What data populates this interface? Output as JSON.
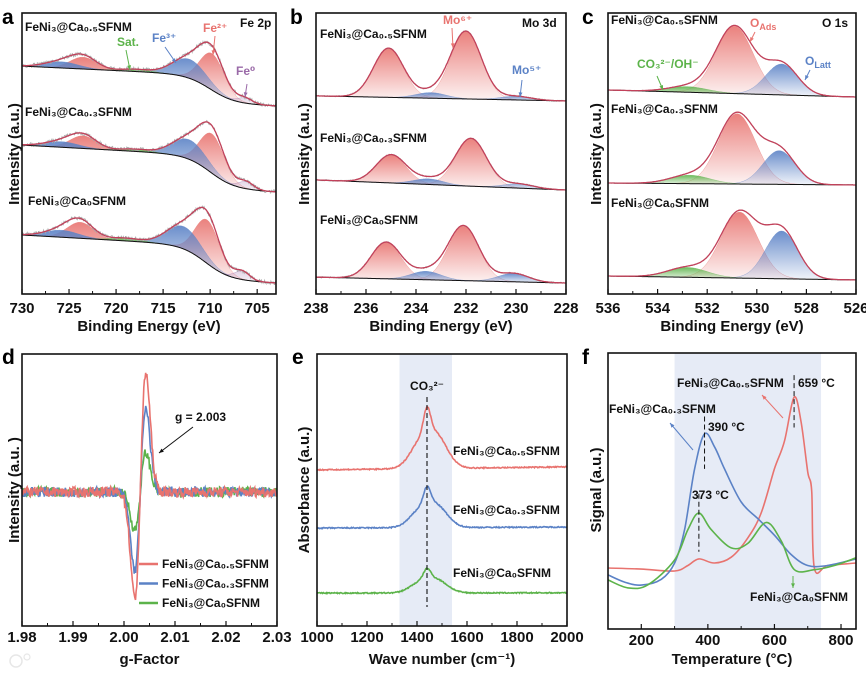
{
  "watermark": "大数跨境",
  "colors": {
    "red": "#e8736f",
    "blue": "#5b82c6",
    "green": "#5cb34a",
    "purple": "#9a6aa8",
    "envelope": "#c2415a",
    "raw": "#a8a8a8",
    "band": "#e6ebf6"
  },
  "chart_data": [
    {
      "panel": "a",
      "type": "line",
      "title": "Fe 2p",
      "xlabel": "Binding Energy (eV)",
      "ylabel": "Intensity (a.u.)",
      "xlim": [
        730,
        703
      ],
      "ylim": [
        0,
        10
      ],
      "xticks": [
        730,
        725,
        720,
        715,
        710,
        705
      ],
      "annotations": [
        {
          "text": "Sat.",
          "color": "green"
        },
        {
          "text": "Fe³⁺",
          "color": "blue"
        },
        {
          "text": "Fe²⁺",
          "color": "red"
        },
        {
          "text": "Fe⁰",
          "color": "purple"
        }
      ],
      "series": [
        {
          "label": "FeNi₃@Ca₀.₅SFNM",
          "baseline": {
            "left": 8.11,
            "right": 6.69,
            "step": 710
          },
          "components": [
            {
              "name": "Fe²⁺",
              "center": 709.8,
              "height": 1.3,
              "sigma": 1.3,
              "color": "red"
            },
            {
              "name": "Fe³⁺",
              "center": 712.2,
              "height": 0.68,
              "sigma": 1.8,
              "color": "blue"
            },
            {
              "name": "Fe²⁺",
              "center": 723.5,
              "height": 0.42,
              "sigma": 1.4,
              "color": "red"
            },
            {
              "name": "Fe³⁺",
              "center": 725.8,
              "height": 0.22,
              "sigma": 1.8,
              "color": "blue"
            },
            {
              "name": "Sat.",
              "center": 718,
              "height": 0.08,
              "sigma": 1.5,
              "color": "green"
            },
            {
              "name": "Fe⁰",
              "center": 706.3,
              "height": 0.18,
              "sigma": 0.8,
              "color": "purple"
            }
          ]
        },
        {
          "label": "FeNi₃@Ca₀.₃SFNM",
          "baseline": {
            "left": 5.3,
            "right": 3.63,
            "step": 710
          },
          "components": [
            {
              "name": "Fe²⁺",
              "center": 709.8,
              "height": 1.4,
              "sigma": 1.3,
              "color": "red"
            },
            {
              "name": "Fe³⁺",
              "center": 712.2,
              "height": 0.7,
              "sigma": 1.8,
              "color": "blue"
            },
            {
              "name": "Fe²⁺",
              "center": 723.5,
              "height": 0.45,
              "sigma": 1.4,
              "color": "red"
            },
            {
              "name": "Fe³⁺",
              "center": 725.8,
              "height": 0.2,
              "sigma": 1.8,
              "color": "blue"
            },
            {
              "name": "Sat.",
              "center": 718,
              "height": 0.08,
              "sigma": 1.5,
              "color": "green"
            },
            {
              "name": "Fe⁰",
              "center": 706.2,
              "height": 0.25,
              "sigma": 0.8,
              "color": "purple"
            }
          ]
        },
        {
          "label": "FeNi₃@Ca₀SFNM",
          "baseline": {
            "left": 2.1,
            "right": 0.39,
            "step": 710.5
          },
          "components": [
            {
              "name": "Fe²⁺",
              "center": 710.3,
              "height": 1.55,
              "sigma": 1.3,
              "color": "red"
            },
            {
              "name": "Fe³⁺",
              "center": 712.8,
              "height": 0.8,
              "sigma": 1.8,
              "color": "blue"
            },
            {
              "name": "Fe²⁺",
              "center": 723.8,
              "height": 0.57,
              "sigma": 1.4,
              "color": "red"
            },
            {
              "name": "Fe³⁺",
              "center": 725.8,
              "height": 0.25,
              "sigma": 1.8,
              "color": "blue"
            },
            {
              "name": "Sat.",
              "center": 719,
              "height": 0.1,
              "sigma": 1.5,
              "color": "green"
            },
            {
              "name": "Fe⁰",
              "center": 706.6,
              "height": 0.3,
              "sigma": 0.8,
              "color": "purple"
            }
          ]
        }
      ]
    },
    {
      "panel": "b",
      "type": "line",
      "title": "Mo 3d",
      "xlabel": "Binding Energy (eV)",
      "ylabel": "Intensity (a.u.)",
      "xlim": [
        238,
        228
      ],
      "ylim": [
        0,
        10
      ],
      "xticks": [
        238,
        236,
        234,
        232,
        230,
        228
      ],
      "annotations": [
        {
          "text": "Mo⁶⁺",
          "color": "red"
        },
        {
          "text": "Mo⁵⁺",
          "color": "blue"
        }
      ],
      "series": [
        {
          "label": "FeNi₃@Ca₀.₅SFNM",
          "baseline": {
            "left": 7.05,
            "right": 6.87
          },
          "components": [
            {
              "name": "Mo⁶⁺",
              "center": 232.0,
              "height": 2.4,
              "sigma": 0.62,
              "color": "red"
            },
            {
              "name": "Mo⁶⁺",
              "center": 235.1,
              "height": 1.75,
              "sigma": 0.6,
              "color": "red"
            },
            {
              "name": "Mo⁵⁺",
              "center": 233.4,
              "height": 0.2,
              "sigma": 0.6,
              "color": "blue"
            },
            {
              "name": "Mo⁵⁺",
              "center": 230.0,
              "height": 0.13,
              "sigma": 0.6,
              "color": "blue"
            }
          ]
        },
        {
          "label": "FeNi₃@Ca₀.₃SFNM",
          "baseline": {
            "left": 4.06,
            "right": 3.7
          },
          "components": [
            {
              "name": "Mo⁶⁺",
              "center": 231.8,
              "height": 1.7,
              "sigma": 0.62,
              "color": "red"
            },
            {
              "name": "Mo⁶⁺",
              "center": 235.0,
              "height": 1.0,
              "sigma": 0.6,
              "color": "red"
            },
            {
              "name": "Mo⁵⁺",
              "center": 233.5,
              "height": 0.2,
              "sigma": 0.6,
              "color": "blue"
            },
            {
              "name": "Mo⁵⁺",
              "center": 229.9,
              "height": 0.15,
              "sigma": 0.6,
              "color": "blue"
            }
          ]
        },
        {
          "label": "FeNi₃@Ca₀SFNM",
          "baseline": {
            "left": 0.6,
            "right": 0.39
          },
          "components": [
            {
              "name": "Mo⁶⁺",
              "center": 232.1,
              "height": 1.95,
              "sigma": 0.62,
              "color": "red"
            },
            {
              "name": "Mo⁶⁺",
              "center": 235.2,
              "height": 1.3,
              "sigma": 0.6,
              "color": "red"
            },
            {
              "name": "Mo⁵⁺",
              "center": 233.6,
              "height": 0.3,
              "sigma": 0.6,
              "color": "blue"
            },
            {
              "name": "Mo⁵⁺",
              "center": 230.1,
              "height": 0.3,
              "sigma": 0.6,
              "color": "blue"
            }
          ]
        }
      ]
    },
    {
      "panel": "c",
      "type": "line",
      "title": "O 1s",
      "xlabel": "Binding Energy (eV)",
      "ylabel": "Intensity (a.u.)",
      "xlim": [
        536,
        526
      ],
      "ylim": [
        0,
        10
      ],
      "xticks": [
        536,
        534,
        532,
        530,
        528,
        526
      ],
      "annotations": [
        {
          "text": "O",
          "sub": "Ads",
          "color": "red"
        },
        {
          "text": "CO₃²⁻/OH⁻",
          "color": "green"
        },
        {
          "text": "O",
          "sub": "Latt",
          "color": "blue"
        }
      ],
      "series": [
        {
          "label": "FeNi₃@Ca₀.₅SFNM",
          "baseline": {
            "left": 7.26,
            "right": 7.01
          },
          "components": [
            {
              "name": "OAds",
              "center": 530.9,
              "height": 2.4,
              "sigma": 0.75,
              "color": "red"
            },
            {
              "name": "OLatt",
              "center": 529.0,
              "height": 1.1,
              "sigma": 0.65,
              "color": "blue"
            },
            {
              "name": "CO3/OH",
              "center": 532.8,
              "height": 0.2,
              "sigma": 0.8,
              "color": "green"
            }
          ]
        },
        {
          "label": "FeNi₃@Ca₀.₃SFNM",
          "baseline": {
            "left": 3.95,
            "right": 3.88
          },
          "components": [
            {
              "name": "OAds",
              "center": 530.8,
              "height": 2.5,
              "sigma": 0.75,
              "color": "red"
            },
            {
              "name": "OLatt",
              "center": 529.1,
              "height": 1.2,
              "sigma": 0.65,
              "color": "blue"
            },
            {
              "name": "CO3/OH",
              "center": 532.7,
              "height": 0.3,
              "sigma": 0.8,
              "color": "green"
            }
          ]
        },
        {
          "label": "FeNi₃@Ca₀SFNM",
          "baseline": {
            "left": 0.64,
            "right": 0.5
          },
          "components": [
            {
              "name": "OAds",
              "center": 530.7,
              "height": 2.35,
              "sigma": 0.75,
              "color": "red"
            },
            {
              "name": "OLatt",
              "center": 529.0,
              "height": 1.7,
              "sigma": 0.65,
              "color": "blue"
            },
            {
              "name": "CO3/OH",
              "center": 532.8,
              "height": 0.35,
              "sigma": 0.8,
              "color": "green"
            }
          ]
        }
      ]
    },
    {
      "panel": "d",
      "type": "line",
      "title": "",
      "xlabel": "g-Factor",
      "ylabel": "Intensity (a.u. )",
      "xlim": [
        1.98,
        2.03
      ],
      "ylim": [
        -1.34,
        1.38
      ],
      "xticks": [
        "1.98",
        "1.99",
        "2.00",
        "2.01",
        "2.02",
        "2.03"
      ],
      "annotation": "g = 2.003",
      "center_g": 2.0032,
      "linewidth": 0.0011,
      "series": [
        {
          "label": "FeNi₃@Ca₀SFNM",
          "color": "green",
          "max": 0.39,
          "min": -0.38
        },
        {
          "label": "FeNi₃@Ca₀.₃SFNM",
          "color": "blue",
          "max": 0.82,
          "min": -0.78
        },
        {
          "label": "FeNi₃@Ca₀.₅SFNM",
          "color": "red",
          "max": 1.19,
          "min": -1.06
        }
      ],
      "legend": [
        "FeNi₃@Ca₀.₅SFNM",
        "FeNi₃@Ca₀.₃SFNM",
        "FeNi₃@Ca₀SFNM"
      ],
      "legend_position": "bottom-right"
    },
    {
      "panel": "e",
      "type": "line",
      "title": "",
      "xlabel": "Wave number (cm⁻¹)",
      "ylabel": "Absorbance (a.u.)",
      "xlim": [
        1000,
        2000
      ],
      "ylim": [
        0,
        10
      ],
      "xticks": [
        1000,
        1200,
        1400,
        1600,
        1800,
        2000
      ],
      "shaded_range": [
        1330,
        1540
      ],
      "marker_x": 1440,
      "annotation": "CO₃²⁻",
      "series": [
        {
          "label": "FeNi₃@Ca₀.₅SFNM",
          "color": "red",
          "baseline": {
            "left": 5.74,
            "right": 5.85
          },
          "components": [
            {
              "center": 1440,
              "height": 0.9,
              "sigma": 14
            },
            {
              "center": 1405,
              "height": 0.7,
              "sigma": 40
            },
            {
              "center": 1475,
              "height": 1.2,
              "sigma": 45
            }
          ]
        },
        {
          "label": "FeNi₃@Ca₀.₃SFNM",
          "color": "blue",
          "baseline": {
            "left": 3.6,
            "right": 3.64
          },
          "components": [
            {
              "center": 1440,
              "height": 0.6,
              "sigma": 14
            },
            {
              "center": 1405,
              "height": 0.47,
              "sigma": 40
            },
            {
              "center": 1475,
              "height": 0.8,
              "sigma": 45
            }
          ]
        },
        {
          "label": "FeNi₃@Ca₀SFNM",
          "color": "green",
          "baseline": {
            "left": 1.21,
            "right": 1.22
          },
          "components": [
            {
              "center": 1440,
              "height": 0.36,
              "sigma": 14
            },
            {
              "center": 1405,
              "height": 0.28,
              "sigma": 40
            },
            {
              "center": 1475,
              "height": 0.48,
              "sigma": 45
            }
          ]
        }
      ]
    },
    {
      "panel": "f",
      "type": "line",
      "title": "",
      "xlabel": "Temperature (°C)",
      "ylabel": "Signal (a.u.)",
      "xlim": [
        100,
        845
      ],
      "ylim": [
        0,
        10
      ],
      "xticks": [
        200,
        400,
        600,
        800
      ],
      "shaded_range": [
        300,
        740
      ],
      "peaks": [
        {
          "x": 659,
          "text": "659 °C",
          "range": [
            7.3,
            9.2
          ]
        },
        {
          "x": 390,
          "text": "390 °C",
          "range": [
            5.8,
            7.7
          ]
        },
        {
          "x": 373,
          "text": "373 °C",
          "range": [
            2.8,
            4.9
          ]
        }
      ],
      "series": [
        {
          "label": "FeNi₃@Ca₀.₅SFNM",
          "color": "red",
          "points": [
            [
              100,
              2.21
            ],
            [
              200,
              2.17
            ],
            [
              300,
              2.1
            ],
            [
              340,
              2.3
            ],
            [
              373,
              2.54
            ],
            [
              420,
              2.39
            ],
            [
              470,
              2.6
            ],
            [
              520,
              3.3
            ],
            [
              560,
              4.2
            ],
            [
              600,
              5.8
            ],
            [
              630,
              6.8
            ],
            [
              659,
              8.4
            ],
            [
              680,
              7.5
            ],
            [
              700,
              5.7
            ],
            [
              712,
              5.0
            ],
            [
              720,
              2.2
            ],
            [
              760,
              2.3
            ],
            [
              845,
              2.39
            ]
          ]
        },
        {
          "label": "FeNi₃@Ca₀.₃SFNM",
          "color": "blue",
          "points": [
            [
              100,
              1.96
            ],
            [
              150,
              1.7
            ],
            [
              200,
              1.59
            ],
            [
              260,
              1.8
            ],
            [
              300,
              2.39
            ],
            [
              330,
              3.6
            ],
            [
              360,
              5.8
            ],
            [
              390,
              7.07
            ],
            [
              420,
              6.6
            ],
            [
              450,
              5.8
            ],
            [
              500,
              4.6
            ],
            [
              550,
              4.0
            ],
            [
              600,
              3.4
            ],
            [
              650,
              2.7
            ],
            [
              700,
              2.3
            ],
            [
              760,
              2.3
            ],
            [
              845,
              2.54
            ]
          ]
        },
        {
          "label": "FeNi₃@Ca₀SFNM",
          "color": "green",
          "points": [
            [
              100,
              1.78
            ],
            [
              160,
              1.49
            ],
            [
              220,
              1.6
            ],
            [
              300,
              2.5
            ],
            [
              340,
              3.6
            ],
            [
              373,
              4.2
            ],
            [
              410,
              3.6
            ],
            [
              470,
              2.94
            ],
            [
              520,
              3.1
            ],
            [
              575,
              3.86
            ],
            [
              620,
              3.2
            ],
            [
              660,
              2.15
            ],
            [
              720,
              2.15
            ],
            [
              780,
              2.3
            ],
            [
              845,
              2.58
            ]
          ]
        }
      ]
    }
  ]
}
